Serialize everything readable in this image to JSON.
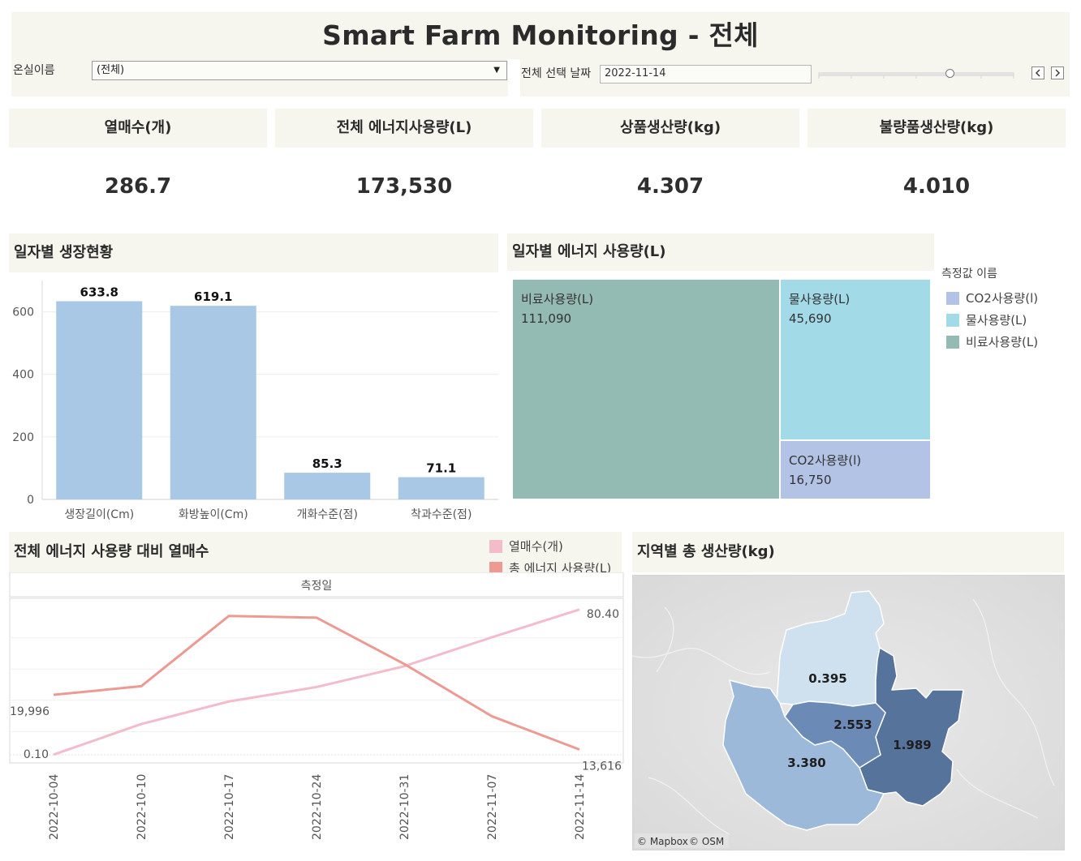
{
  "header": {
    "title": "Smart Farm Monitoring - 전체"
  },
  "filters": {
    "greenhouse_label": "온실이름",
    "greenhouse_value": "(전체)",
    "date_label": "전체 선택 날짜",
    "date_value": "2022-11-14",
    "prev_icon": "chevron-left-icon",
    "next_icon": "chevron-right-icon",
    "slider_position_ratio": 0.67
  },
  "kpis": [
    {
      "label": "열매수(개)",
      "value": "286.7"
    },
    {
      "label": "전체 에너지사용량(L)",
      "value": "173,530"
    },
    {
      "label": "상품생산량(kg)",
      "value": "4.307"
    },
    {
      "label": "불량품생산량(kg)",
      "value": "4.010"
    }
  ],
  "growth_chart": {
    "title": "일자별 생장현황",
    "chart_data": {
      "type": "bar",
      "categories": [
        "생장길이(Cm)",
        "화방높이(Cm)",
        "개화수준(점)",
        "착과수준(점)"
      ],
      "values": [
        633.8,
        619.1,
        85.3,
        71.1
      ],
      "value_labels": [
        "633.8",
        "619.1",
        "85.3",
        "71.1"
      ],
      "y_ticks": [
        0,
        200,
        400,
        600
      ],
      "ylim": [
        0,
        700
      ],
      "color": "#a8c8e6"
    }
  },
  "energy_chart": {
    "title": "일자별 에너지 사용량(L)",
    "legend_title": "측정값 이름",
    "legend": [
      {
        "name": "CO2사용량(l)",
        "color": "#b3c3e6"
      },
      {
        "name": "물사용량(L)",
        "color": "#a2dae8"
      },
      {
        "name": "비료사용량(L)",
        "color": "#93bab3"
      }
    ],
    "chart_data": {
      "type": "treemap",
      "items": [
        {
          "name": "비료사용량(L)",
          "value": 111090,
          "label": "111,090",
          "color": "#93bab3"
        },
        {
          "name": "물사용량(L)",
          "value": 45690,
          "label": "45,690",
          "color": "#a2dae8"
        },
        {
          "name": "CO2사용량(l)",
          "value": 16750,
          "label": "16,750",
          "color": "#b3c3e6"
        }
      ]
    }
  },
  "line_chart": {
    "title": "전체 에너지 사용량 대비 열매수",
    "header_label": "측정일",
    "legend": [
      {
        "name": "열매수(개)",
        "color": "#f4bccb"
      },
      {
        "name": "총 에너지 사용량(L)",
        "color": "#ec9a92"
      }
    ],
    "chart_data": {
      "type": "line",
      "x": [
        "2022-10-04",
        "2022-10-10",
        "2022-10-17",
        "2022-10-24",
        "2022-10-31",
        "2022-11-07",
        "2022-11-14"
      ],
      "series": [
        {
          "name": "총 에너지 사용량(L)",
          "color": "#ec9a92",
          "values": [
            19996,
            21000,
            29200,
            29000,
            23600,
            17500,
            13616
          ]
        },
        {
          "name": "열매수(개)",
          "color": "#f4bccb",
          "values": [
            0.1,
            17.0,
            29.5,
            37.5,
            49.0,
            65.0,
            80.4
          ]
        }
      ],
      "energy_range": [
        13000,
        30500
      ],
      "fruit_range": [
        0,
        83
      ],
      "labels": {
        "energy_start": "19,996",
        "energy_end": "13,616",
        "fruit_start": "0.10",
        "fruit_end": "80.40"
      }
    }
  },
  "map": {
    "title": "지역별 총 생산량(kg)",
    "attribution_mapbox": "© Mapbox",
    "attribution_osm": "© OSM",
    "chart_data": {
      "type": "choropleth",
      "regions": [
        {
          "name": "north",
          "value": 0.395,
          "label": "0.395",
          "color": "#cfe0ef"
        },
        {
          "name": "center",
          "value": 2.553,
          "label": "2.553",
          "color": "#6c8ab6"
        },
        {
          "name": "east",
          "value": 1.989,
          "label": "1.989",
          "color": "#56739c"
        },
        {
          "name": "southwest",
          "value": 3.38,
          "label": "3.380",
          "color": "#9cb9d9"
        }
      ]
    }
  }
}
